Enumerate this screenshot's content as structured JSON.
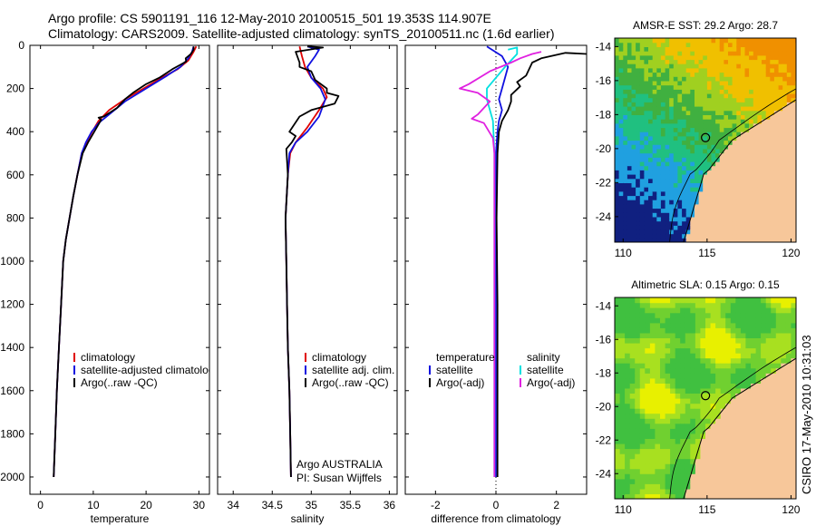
{
  "header": {
    "line1": "Argo profile: CS 5901191_116 12-May-2010 20100515_501 19.353S 114.907E",
    "line2": "Climatology: CARS2009. Satellite-adjusted climatology: synTS_20100511.nc (1.6d earlier)"
  },
  "side_label": "CSIRO 17-May-2010 10:31:03",
  "colors": {
    "climatology": "#e00000",
    "satellite": "#1010e0",
    "argo": "#000000",
    "sat_salinity": "#00e0e0",
    "argo_salinity_diff": "#e020e0",
    "land": "#f7c79a"
  },
  "chart_data": [
    {
      "type": "line",
      "xlabel": "temperature",
      "ylabel": "",
      "xlim": [
        -2,
        32
      ],
      "ylim": [
        2080,
        0
      ],
      "y_inverted": true,
      "xticks": [
        0,
        10,
        20,
        30
      ],
      "yticks": [
        0,
        200,
        400,
        600,
        800,
        1000,
        1200,
        1400,
        1600,
        1800,
        2000
      ],
      "legend_position": "bottom-right",
      "legend": [
        "climatology",
        "satellite-adjusted climatology",
        "Argo(..raw -QC)"
      ],
      "series": [
        {
          "name": "climatology",
          "color": "#e00000",
          "points": [
            [
              29.5,
              5
            ],
            [
              29,
              30
            ],
            [
              28,
              70
            ],
            [
              26,
              110
            ],
            [
              23,
              150
            ],
            [
              19.5,
              200
            ],
            [
              16,
              250
            ],
            [
              13,
              300
            ],
            [
              11,
              350
            ],
            [
              9.8,
              400
            ],
            [
              8.7,
              450
            ],
            [
              7.8,
              500
            ],
            [
              7,
              600
            ],
            [
              6.2,
              700
            ],
            [
              5.5,
              800
            ],
            [
              4.8,
              900
            ],
            [
              4.3,
              1000
            ],
            [
              3.9,
              1200
            ],
            [
              3.5,
              1400
            ],
            [
              3.1,
              1600
            ],
            [
              2.8,
              1800
            ],
            [
              2.5,
              2000
            ]
          ]
        },
        {
          "name": "satellite-adjusted climatology",
          "color": "#1010e0",
          "points": [
            [
              29,
              5
            ],
            [
              28.7,
              30
            ],
            [
              28,
              60
            ],
            [
              26.5,
              100
            ],
            [
              24,
              140
            ],
            [
              20,
              200
            ],
            [
              16,
              260
            ],
            [
              13,
              320
            ],
            [
              11,
              360
            ],
            [
              9.7,
              400
            ],
            [
              8.6,
              450
            ],
            [
              7.8,
              500
            ],
            [
              7,
              600
            ],
            [
              6.2,
              700
            ],
            [
              5.5,
              800
            ],
            [
              4.8,
              900
            ],
            [
              4.3,
              1000
            ],
            [
              3.9,
              1200
            ],
            [
              3.5,
              1400
            ],
            [
              3.1,
              1600
            ],
            [
              2.8,
              1800
            ],
            [
              2.5,
              2000
            ]
          ]
        },
        {
          "name": "Argo(..raw -QC)",
          "color": "#000000",
          "points": [
            [
              29,
              5
            ],
            [
              29,
              20
            ],
            [
              28.5,
              40
            ],
            [
              27.5,
              60
            ],
            [
              27.6,
              75
            ],
            [
              26.5,
              90
            ],
            [
              25,
              110
            ],
            [
              22.5,
              150
            ],
            [
              20,
              180
            ],
            [
              17.5,
              220
            ],
            [
              16,
              250
            ],
            [
              14.5,
              290
            ],
            [
              12,
              330
            ],
            [
              11,
              335
            ],
            [
              11.5,
              345
            ],
            [
              10.2,
              400
            ],
            [
              9,
              450
            ],
            [
              8,
              500
            ],
            [
              7,
              600
            ],
            [
              6.2,
              700
            ],
            [
              5.5,
              800
            ],
            [
              4.8,
              900
            ],
            [
              4.3,
              1000
            ],
            [
              3.9,
              1200
            ],
            [
              3.5,
              1400
            ],
            [
              3.1,
              1600
            ],
            [
              2.8,
              1800
            ],
            [
              2.5,
              2000
            ]
          ]
        }
      ]
    },
    {
      "type": "line",
      "xlabel": "salinity",
      "ylabel": "",
      "xlim": [
        33.8,
        36.1
      ],
      "ylim": [
        2080,
        0
      ],
      "y_inverted": true,
      "xticks": [
        34,
        34.5,
        35,
        35.5,
        36
      ],
      "legend_position": "bottom-right",
      "legend": [
        "climatology",
        "satellite adj. clim.",
        "Argo(..raw -QC)"
      ],
      "annotation": [
        "Argo AUSTRALIA",
        "PI: Susan Wijffels"
      ],
      "series": [
        {
          "name": "climatology",
          "color": "#e00000",
          "points": [
            [
              34.85,
              5
            ],
            [
              34.88,
              50
            ],
            [
              34.92,
              100
            ],
            [
              35.0,
              150
            ],
            [
              35.15,
              200
            ],
            [
              35.2,
              240
            ],
            [
              35.1,
              300
            ],
            [
              34.95,
              380
            ],
            [
              34.8,
              450
            ],
            [
              34.73,
              500
            ],
            [
              34.7,
              600
            ],
            [
              34.67,
              800
            ],
            [
              34.68,
              1000
            ],
            [
              34.69,
              1200
            ],
            [
              34.7,
              1400
            ],
            [
              34.72,
              1600
            ],
            [
              34.73,
              1800
            ],
            [
              34.74,
              2000
            ]
          ]
        },
        {
          "name": "satellite adj. clim.",
          "color": "#1010e0",
          "points": [
            [
              34.95,
              5
            ],
            [
              35.1,
              20
            ],
            [
              35.05,
              50
            ],
            [
              34.95,
              100
            ],
            [
              35.0,
              150
            ],
            [
              35.12,
              200
            ],
            [
              35.18,
              250
            ],
            [
              35.1,
              330
            ],
            [
              34.95,
              400
            ],
            [
              34.8,
              450
            ],
            [
              34.72,
              500
            ],
            [
              34.7,
              600
            ],
            [
              34.67,
              800
            ],
            [
              34.68,
              1000
            ],
            [
              34.69,
              1200
            ],
            [
              34.7,
              1400
            ],
            [
              34.72,
              1600
            ],
            [
              34.73,
              1800
            ],
            [
              34.74,
              2000
            ]
          ]
        },
        {
          "name": "Argo(..raw -QC)",
          "color": "#000000",
          "points": [
            [
              34.95,
              5
            ],
            [
              35.15,
              10
            ],
            [
              34.8,
              30
            ],
            [
              34.85,
              80
            ],
            [
              34.85,
              100
            ],
            [
              35.0,
              120
            ],
            [
              35.05,
              160
            ],
            [
              35.2,
              200
            ],
            [
              35.2,
              220
            ],
            [
              35.35,
              235
            ],
            [
              35.3,
              270
            ],
            [
              35.0,
              300
            ],
            [
              34.85,
              330
            ],
            [
              34.72,
              400
            ],
            [
              34.8,
              420
            ],
            [
              34.75,
              450
            ],
            [
              34.68,
              480
            ],
            [
              34.7,
              600
            ],
            [
              34.67,
              800
            ],
            [
              34.68,
              1000
            ],
            [
              34.69,
              1200
            ],
            [
              34.7,
              1400
            ],
            [
              34.72,
              1600
            ],
            [
              34.73,
              1800
            ],
            [
              34.74,
              2000
            ]
          ]
        }
      ]
    },
    {
      "type": "line",
      "xlabel": "difference from climatology",
      "ylabel": "",
      "xlim": [
        -3,
        3
      ],
      "ylim": [
        2080,
        0
      ],
      "y_inverted": true,
      "xticks": [
        -2,
        0,
        2
      ],
      "legend_position": "bottom",
      "legend_groups": [
        {
          "title": "temperature",
          "items": [
            "satellite",
            "Argo(-adj)"
          ]
        },
        {
          "title": "salinity",
          "items": [
            "satellite",
            "Argo(-adj)"
          ]
        }
      ],
      "series": [
        {
          "name": "temperature satellite",
          "color": "#1010e0",
          "points": [
            [
              -0.3,
              5
            ],
            [
              0.2,
              50
            ],
            [
              0.4,
              100
            ],
            [
              0.3,
              150
            ],
            [
              0.2,
              200
            ],
            [
              0.1,
              250
            ],
            [
              0.2,
              300
            ],
            [
              0.1,
              350
            ],
            [
              0.05,
              400
            ],
            [
              0.0,
              500
            ],
            [
              0.0,
              800
            ],
            [
              0.0,
              1200
            ],
            [
              0.0,
              1600
            ],
            [
              0.0,
              2000
            ]
          ]
        },
        {
          "name": "temperature Argo(-adj)",
          "color": "#000000",
          "points": [
            [
              3,
              40
            ],
            [
              2.3,
              35
            ],
            [
              1.5,
              60
            ],
            [
              1.2,
              80
            ],
            [
              1.0,
              140
            ],
            [
              0.7,
              170
            ],
            [
              0.8,
              190
            ],
            [
              0.5,
              230
            ],
            [
              0.5,
              260
            ],
            [
              0.4,
              300
            ],
            [
              0.2,
              350
            ],
            [
              0.1,
              400
            ],
            [
              0.05,
              500
            ],
            [
              0.02,
              800
            ],
            [
              0.05,
              1200
            ],
            [
              0.05,
              1600
            ],
            [
              0.05,
              2000
            ]
          ]
        },
        {
          "name": "salinity satellite",
          "color": "#00e0e0",
          "points": [
            [
              0.4,
              20
            ],
            [
              0.7,
              10
            ],
            [
              0.7,
              40
            ],
            [
              0.3,
              100
            ],
            [
              -0.3,
              200
            ],
            [
              -0.3,
              250
            ],
            [
              -0.1,
              350
            ],
            [
              -0.05,
              500
            ],
            [
              -0.05,
              800
            ],
            [
              -0.05,
              1200
            ],
            [
              -0.05,
              1600
            ],
            [
              -0.05,
              2000
            ]
          ]
        },
        {
          "name": "salinity Argo(-adj)",
          "color": "#e020e0",
          "points": [
            [
              1.5,
              30
            ],
            [
              1.2,
              40
            ],
            [
              0.8,
              60
            ],
            [
              0.5,
              80
            ],
            [
              -0.2,
              120
            ],
            [
              -0.9,
              180
            ],
            [
              -1.2,
              200
            ],
            [
              -0.6,
              220
            ],
            [
              -0.2,
              260
            ],
            [
              -0.6,
              320
            ],
            [
              -0.8,
              340
            ],
            [
              -0.4,
              360
            ],
            [
              -0.1,
              430
            ],
            [
              -0.05,
              500
            ],
            [
              -0.05,
              800
            ],
            [
              -0.05,
              1200
            ],
            [
              -0.05,
              1600
            ],
            [
              -0.05,
              2000
            ]
          ]
        }
      ]
    },
    {
      "type": "heatmap",
      "title": "AMSR-E SST: 29.2 Argo: 28.7",
      "xlim": [
        109.5,
        120.3
      ],
      "ylim": [
        -25.5,
        -13.5
      ],
      "xticks": [
        110,
        115,
        120
      ],
      "yticks": [
        -14,
        -16,
        -18,
        -20,
        -22,
        -24
      ],
      "marker": {
        "lon": 114.907,
        "lat": -19.353
      }
    },
    {
      "type": "heatmap",
      "title": "Altimetric SLA: 0.15 Argo: 0.15",
      "xlim": [
        109.5,
        120.3
      ],
      "ylim": [
        -25.5,
        -13.5
      ],
      "xticks": [
        110,
        115,
        120
      ],
      "yticks": [
        -14,
        -16,
        -18,
        -20,
        -22,
        -24
      ],
      "marker": {
        "lon": 114.907,
        "lat": -19.353
      }
    }
  ]
}
